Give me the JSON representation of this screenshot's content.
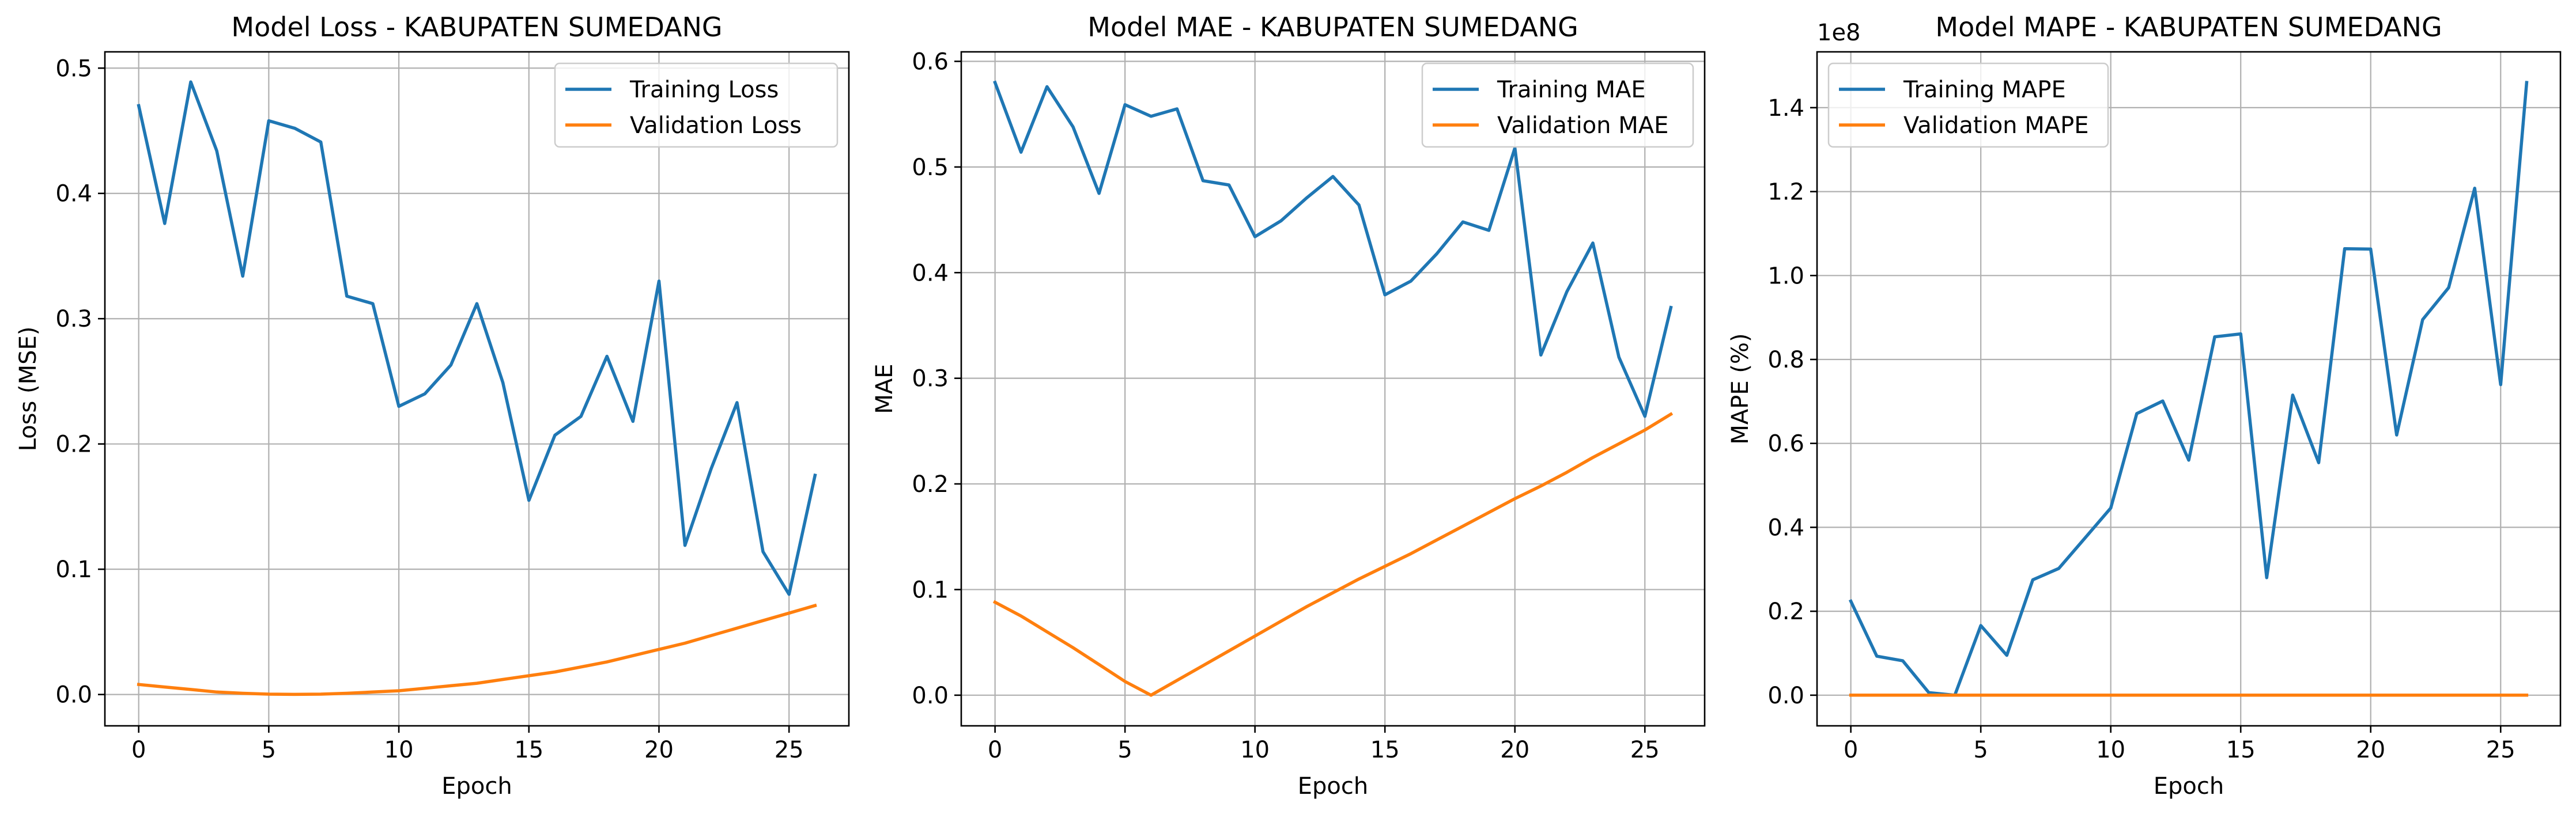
{
  "chart_data": [
    {
      "type": "line",
      "title": "Model Loss - KABUPATEN SUMEDANG",
      "xlabel": "Epoch",
      "ylabel": "Loss (MSE)",
      "xlim": [
        -1.3,
        27.3
      ],
      "ylim": [
        -0.025,
        0.513
      ],
      "xticks": [
        0,
        5,
        10,
        15,
        20,
        25
      ],
      "yticks": [
        0.0,
        0.1,
        0.2,
        0.3,
        0.4,
        0.5
      ],
      "ytick_labels": [
        "0.0",
        "0.1",
        "0.2",
        "0.3",
        "0.4",
        "0.5"
      ],
      "offset_label": "",
      "grid": true,
      "legend_loc": "upper right",
      "x": [
        0,
        1,
        2,
        3,
        4,
        5,
        6,
        7,
        8,
        9,
        10,
        11,
        12,
        13,
        14,
        15,
        16,
        17,
        18,
        19,
        20,
        21,
        22,
        23,
        24,
        25,
        26
      ],
      "series": [
        {
          "name": "Training Loss",
          "color": "#1f77b4",
          "values": [
            0.47,
            0.376,
            0.489,
            0.434,
            0.334,
            0.458,
            0.452,
            0.441,
            0.318,
            0.312,
            0.23,
            0.24,
            0.263,
            0.312,
            0.249,
            0.155,
            0.207,
            0.222,
            0.27,
            0.218,
            0.33,
            0.119,
            0.18,
            0.233,
            0.114,
            0.08,
            0.175
          ]
        },
        {
          "name": "Validation Loss",
          "color": "#ff7f0e",
          "values": [
            0.008,
            0.006,
            0.004,
            0.002,
            0.001,
            0.0003,
            0.0001,
            0.0003,
            0.001,
            0.002,
            0.003,
            0.005,
            0.007,
            0.009,
            0.012,
            0.015,
            0.018,
            0.022,
            0.026,
            0.031,
            0.036,
            0.041,
            0.047,
            0.053,
            0.059,
            0.065,
            0.071
          ]
        }
      ]
    },
    {
      "type": "line",
      "title": "Model MAE - KABUPATEN SUMEDANG",
      "xlabel": "Epoch",
      "ylabel": "MAE",
      "xlim": [
        -1.3,
        27.3
      ],
      "ylim": [
        -0.029,
        0.609
      ],
      "xticks": [
        0,
        5,
        10,
        15,
        20,
        25
      ],
      "yticks": [
        0.0,
        0.1,
        0.2,
        0.3,
        0.4,
        0.5,
        0.6
      ],
      "ytick_labels": [
        "0.0",
        "0.1",
        "0.2",
        "0.3",
        "0.4",
        "0.5",
        "0.6"
      ],
      "offset_label": "",
      "grid": true,
      "legend_loc": "upper right",
      "x": [
        0,
        1,
        2,
        3,
        4,
        5,
        6,
        7,
        8,
        9,
        10,
        11,
        12,
        13,
        14,
        15,
        16,
        17,
        18,
        19,
        20,
        21,
        22,
        23,
        24,
        25,
        26
      ],
      "series": [
        {
          "name": "Training MAE",
          "color": "#1f77b4",
          "values": [
            0.58,
            0.514,
            0.576,
            0.538,
            0.475,
            0.559,
            0.548,
            0.555,
            0.487,
            0.483,
            0.434,
            0.449,
            0.471,
            0.491,
            0.464,
            0.379,
            0.392,
            0.418,
            0.448,
            0.44,
            0.518,
            0.322,
            0.382,
            0.428,
            0.32,
            0.264,
            0.367
          ]
        },
        {
          "name": "Validation MAE",
          "color": "#ff7f0e",
          "values": [
            0.088,
            0.075,
            0.06,
            0.045,
            0.029,
            0.013,
            0.0,
            0.014,
            0.028,
            0.042,
            0.056,
            0.07,
            0.084,
            0.097,
            0.11,
            0.122,
            0.134,
            0.147,
            0.16,
            0.173,
            0.186,
            0.198,
            0.211,
            0.225,
            0.238,
            0.251,
            0.266
          ]
        }
      ]
    },
    {
      "type": "line",
      "title": "Model MAPE - KABUPATEN SUMEDANG",
      "xlabel": "Epoch",
      "ylabel": "MAPE (%)",
      "xlim": [
        -1.3,
        27.3
      ],
      "ylim": [
        -0.073,
        1.533
      ],
      "xticks": [
        0,
        5,
        10,
        15,
        20,
        25
      ],
      "yticks": [
        0.0,
        0.2,
        0.4,
        0.6,
        0.8,
        1.0,
        1.2,
        1.4
      ],
      "ytick_labels": [
        "0.0",
        "0.2",
        "0.4",
        "0.6",
        "0.8",
        "1.0",
        "1.2",
        "1.4"
      ],
      "offset_label": "1e8",
      "grid": true,
      "legend_loc": "upper left",
      "x": [
        0,
        1,
        2,
        3,
        4,
        5,
        6,
        7,
        8,
        9,
        10,
        11,
        12,
        13,
        14,
        15,
        16,
        17,
        18,
        19,
        20,
        21,
        22,
        23,
        24,
        25,
        26
      ],
      "series": [
        {
          "name": "Training MAPE",
          "color": "#1f77b4",
          "values": [
            0.224,
            0.093,
            0.082,
            0.006,
            0.0,
            0.166,
            0.095,
            0.275,
            0.302,
            0.374,
            0.446,
            0.671,
            0.701,
            0.56,
            0.854,
            0.861,
            0.28,
            0.715,
            0.554,
            1.064,
            1.063,
            0.62,
            0.895,
            0.971,
            1.208,
            0.74,
            1.46
          ]
        },
        {
          "name": "Validation MAPE",
          "color": "#ff7f0e",
          "values": [
            0,
            0,
            0,
            0,
            0,
            0,
            0,
            0,
            0,
            0,
            0,
            0,
            0,
            0,
            0,
            0,
            0,
            0,
            0,
            0,
            0,
            0,
            0,
            0,
            0,
            0,
            0
          ]
        }
      ]
    }
  ]
}
